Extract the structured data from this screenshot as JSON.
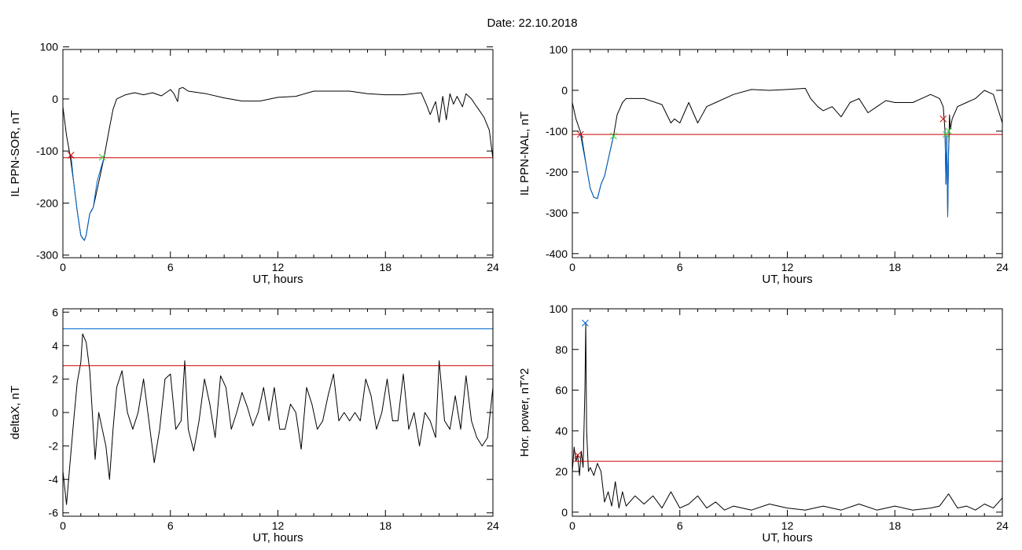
{
  "header": {
    "date_label": "Date:  22.10.2018"
  },
  "chart_data": [
    {
      "id": "top-left",
      "type": "line",
      "xlabel": "UT, hours",
      "ylabel": "IL PPN-SOR, nT",
      "xlim": [
        0,
        24
      ],
      "ylim": [
        -305,
        95
      ],
      "xticks": [
        0,
        6,
        12,
        18,
        24
      ],
      "yticks": [
        -300,
        -200,
        -100,
        0,
        100
      ],
      "series": [
        {
          "color": "#000000",
          "x": [
            0,
            0.2,
            0.4,
            0.6,
            0.8,
            1.0,
            1.2,
            1.3,
            1.5,
            1.7,
            2.0,
            2.3,
            2.6,
            2.8,
            3.0,
            3.5,
            4,
            4.5,
            5,
            5.5,
            6,
            6.2,
            6.4,
            6.5,
            6.7,
            7,
            8,
            9,
            10,
            11,
            12,
            13,
            14,
            15,
            16,
            17,
            18,
            19,
            20,
            20.3,
            20.5,
            20.8,
            21,
            21.2,
            21.4,
            21.6,
            21.8,
            22,
            22.3,
            22.5,
            22.8,
            23,
            23.2,
            23.5,
            23.8,
            24
          ],
          "y": [
            -15,
            -70,
            -108,
            -160,
            -215,
            -262,
            -272,
            -262,
            -220,
            -208,
            -160,
            -112,
            -55,
            -20,
            0,
            8,
            12,
            8,
            12,
            6,
            18,
            10,
            -5,
            20,
            22,
            15,
            10,
            2,
            -4,
            -4,
            3,
            5,
            15,
            15,
            15,
            10,
            8,
            8,
            12,
            -12,
            -30,
            -5,
            -45,
            5,
            -40,
            10,
            -10,
            5,
            -15,
            10,
            0,
            -10,
            -20,
            -35,
            -60,
            -115
          ]
        },
        {
          "color": "#0066cc",
          "x": [
            0.45,
            0.6,
            0.8,
            1.0,
            1.1,
            1.2,
            1.3,
            1.5,
            1.6,
            1.7,
            1.9,
            2.1,
            2.3
          ],
          "y": [
            -108,
            -160,
            -215,
            -262,
            -268,
            -272,
            -262,
            -220,
            -215,
            -208,
            -160,
            -135,
            -112
          ]
        },
        {
          "color": "#cc0000",
          "x": [
            0,
            24
          ],
          "y": [
            -113,
            -113
          ]
        }
      ],
      "markers": [
        {
          "x": 0.45,
          "y": -108,
          "color": "#cc0000"
        },
        {
          "x": 2.2,
          "y": -112,
          "color": "#33cc33"
        }
      ]
    },
    {
      "id": "top-right",
      "type": "line",
      "xlabel": "UT, hours",
      "ylabel": "IL PPN-NAL, nT",
      "xlim": [
        0,
        24
      ],
      "ylim": [
        -410,
        100
      ],
      "xticks": [
        0,
        6,
        12,
        18,
        24
      ],
      "yticks": [
        -400,
        -300,
        -200,
        -100,
        0,
        100
      ],
      "series": [
        {
          "color": "#000000",
          "x": [
            0,
            0.2,
            0.5,
            0.8,
            1.0,
            1.2,
            1.4,
            1.6,
            1.8,
            2.0,
            2.3,
            2.5,
            2.8,
            3,
            4,
            5,
            5.5,
            5.7,
            6,
            6.5,
            7,
            7.5,
            8,
            9,
            10,
            11,
            12,
            13,
            13.3,
            13.7,
            14,
            14.5,
            15,
            15.5,
            16,
            16.5,
            17,
            17.5,
            18,
            19,
            20,
            20.5,
            20.7,
            20.8,
            20.85,
            20.9,
            20.95,
            21.0,
            21.05,
            21.1,
            21.2,
            21.5,
            22,
            22.5,
            23,
            23.5,
            24
          ],
          "y": [
            -30,
            -70,
            -108,
            -190,
            -240,
            -262,
            -265,
            -230,
            -210,
            -170,
            -112,
            -60,
            -30,
            -20,
            -20,
            -35,
            -80,
            -70,
            -80,
            -30,
            -80,
            -40,
            -30,
            -10,
            2,
            0,
            2,
            5,
            -20,
            -40,
            -50,
            -40,
            -65,
            -30,
            -20,
            -55,
            -40,
            -25,
            -30,
            -30,
            -10,
            -20,
            -40,
            -100,
            -230,
            -110,
            -310,
            -150,
            -60,
            -95,
            -70,
            -40,
            -30,
            -20,
            0,
            -10,
            -80
          ]
        },
        {
          "color": "#0066cc",
          "x": [
            0.45,
            0.8,
            1.0,
            1.2,
            1.4,
            1.6,
            1.8,
            2.0,
            2.2,
            2.3
          ],
          "y": [
            -108,
            -190,
            -240,
            -262,
            -265,
            -230,
            -210,
            -170,
            -130,
            -112
          ]
        },
        {
          "color": "#0066cc",
          "x": [
            20.8,
            20.85,
            20.9,
            20.95,
            21.0,
            21.05
          ],
          "y": [
            -100,
            -230,
            -110,
            -310,
            -150,
            -100
          ]
        },
        {
          "color": "#cc0000",
          "x": [
            0,
            24
          ],
          "y": [
            -108,
            -108
          ]
        }
      ],
      "markers": [
        {
          "x": 0.45,
          "y": -108,
          "color": "#cc0000"
        },
        {
          "x": 2.3,
          "y": -112,
          "color": "#33cc33"
        },
        {
          "x": 20.7,
          "y": -70,
          "color": "#cc0000"
        },
        {
          "x": 21.0,
          "y": -100,
          "color": "#33cc33"
        },
        {
          "x": 20.85,
          "y": -108,
          "color": "#33cc33"
        }
      ]
    },
    {
      "id": "bottom-left",
      "type": "line",
      "xlabel": "UT, hours",
      "ylabel": "deltaX, nT",
      "xlim": [
        0,
        24
      ],
      "ylim": [
        -6.2,
        6.2
      ],
      "xticks": [
        0,
        6,
        12,
        18,
        24
      ],
      "yticks": [
        -6,
        -4,
        -2,
        0,
        2,
        4,
        6
      ],
      "series": [
        {
          "color": "#000000",
          "x": [
            0,
            0.2,
            0.4,
            0.6,
            0.8,
            1.0,
            1.1,
            1.3,
            1.5,
            1.7,
            1.8,
            2,
            2.2,
            2.4,
            2.6,
            2.8,
            3,
            3.3,
            3.6,
            3.9,
            4.2,
            4.5,
            4.8,
            5.1,
            5.4,
            5.7,
            6,
            6.3,
            6.6,
            6.8,
            7,
            7.3,
            7.6,
            7.9,
            8.2,
            8.5,
            8.8,
            9.1,
            9.4,
            9.7,
            10,
            10.3,
            10.6,
            10.9,
            11.2,
            11.5,
            11.8,
            12.1,
            12.4,
            12.7,
            13,
            13.3,
            13.6,
            13.9,
            14.2,
            14.5,
            14.8,
            15.1,
            15.4,
            15.7,
            16,
            16.3,
            16.6,
            16.9,
            17.2,
            17.5,
            17.8,
            18.1,
            18.4,
            18.7,
            19,
            19.3,
            19.6,
            19.9,
            20.2,
            20.5,
            20.8,
            21,
            21.3,
            21.6,
            21.9,
            22.2,
            22.5,
            22.8,
            23.1,
            23.4,
            23.7,
            24
          ],
          "y": [
            -3.5,
            -5.5,
            -3,
            -0.5,
            1.8,
            3,
            4.7,
            4.2,
            2.5,
            -1,
            -2.8,
            0,
            -1,
            -2,
            -4,
            -1,
            1.5,
            2.5,
            0,
            -1,
            0,
            2,
            -0.5,
            -3,
            -1,
            2,
            2.3,
            -1,
            -0.5,
            3.1,
            -1,
            -2.3,
            -0.5,
            2,
            0.5,
            -1.5,
            2.2,
            1.5,
            -1,
            0,
            1.2,
            0.3,
            -0.8,
            0,
            1.5,
            -0.5,
            1.5,
            -1,
            -1,
            0.5,
            0,
            -2.2,
            1.5,
            0.5,
            -1,
            -0.5,
            1,
            2.3,
            -0.5,
            0,
            -0.5,
            0,
            -0.5,
            2,
            1,
            -1,
            0,
            2,
            -0.5,
            -0.5,
            2.3,
            -1,
            0,
            -2,
            0,
            -0.5,
            -1.5,
            3.1,
            -0.5,
            -1,
            1,
            -1,
            2.2,
            -0.5,
            -1.5,
            -2,
            -1.5,
            1.5
          ]
        },
        {
          "color": "#0066cc",
          "x": [
            0,
            24
          ],
          "y": [
            5,
            5
          ]
        },
        {
          "color": "#cc0000",
          "x": [
            0,
            24
          ],
          "y": [
            2.8,
            2.8
          ]
        }
      ],
      "markers": []
    },
    {
      "id": "bottom-right",
      "type": "line",
      "xlabel": "UT, hours",
      "ylabel": "Hor. power, nT^2",
      "xlim": [
        0,
        24
      ],
      "ylim": [
        -2,
        100
      ],
      "xticks": [
        0,
        6,
        12,
        18,
        24
      ],
      "yticks": [
        0,
        20,
        40,
        60,
        80,
        100
      ],
      "series": [
        {
          "color": "#000000",
          "x": [
            0,
            0.1,
            0.2,
            0.3,
            0.4,
            0.5,
            0.6,
            0.7,
            0.75,
            0.8,
            0.9,
            1.0,
            1.2,
            1.4,
            1.6,
            1.8,
            2.0,
            2.2,
            2.4,
            2.6,
            2.8,
            3,
            3.5,
            4,
            4.5,
            5,
            5.5,
            6,
            6.5,
            7,
            7.5,
            8,
            8.5,
            9,
            10,
            11,
            12,
            13,
            14,
            15,
            16,
            17,
            18,
            19,
            20,
            20.5,
            21,
            21.5,
            22,
            22.5,
            23,
            23.5,
            24
          ],
          "y": [
            20,
            32,
            25,
            28,
            18,
            30,
            22,
            60,
            93,
            40,
            20,
            22,
            18,
            24,
            20,
            5,
            10,
            3,
            15,
            2,
            10,
            3,
            8,
            4,
            8,
            2,
            10,
            2,
            4,
            8,
            2,
            5,
            1,
            3,
            1,
            4,
            2,
            1,
            3,
            1,
            4,
            1,
            3,
            1,
            2,
            3,
            9,
            2,
            3,
            1,
            4,
            2,
            7
          ]
        },
        {
          "color": "#cc0000",
          "x": [
            0,
            24
          ],
          "y": [
            25,
            25
          ]
        }
      ],
      "markers": [
        {
          "x": 0.72,
          "y": 93,
          "color": "#0066cc"
        },
        {
          "x": 0.3,
          "y": 28,
          "color": "#cc0000"
        }
      ]
    }
  ]
}
